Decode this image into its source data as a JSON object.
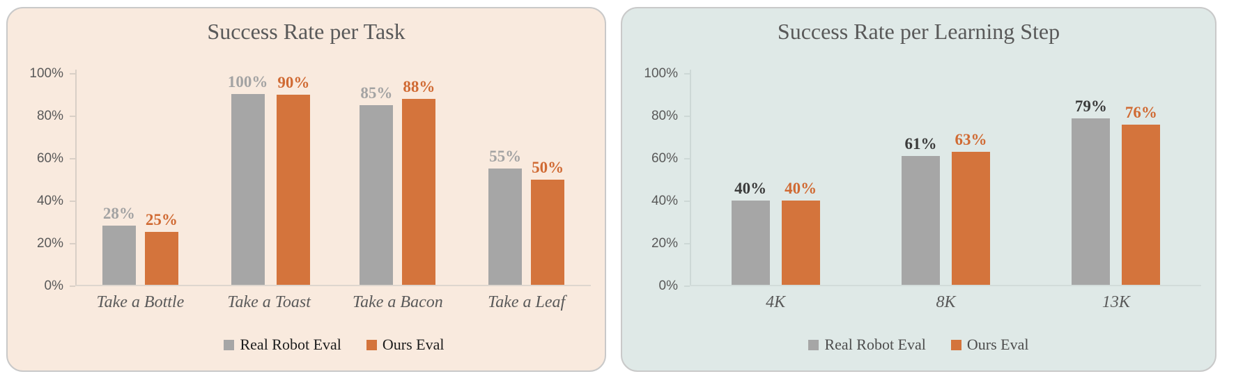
{
  "page": {
    "background": "#ffffff"
  },
  "chart_data": [
    {
      "type": "bar",
      "title": "Success Rate per Task",
      "categories": [
        "Take a Bottle",
        "Take a Toast",
        "Take a Bacon",
        "Take a Leaf"
      ],
      "series": [
        {
          "name": "Real Robot Eval",
          "values": [
            28,
            100,
            85,
            55
          ],
          "bar_color": "#a6a6a6",
          "label_color": "#a3a3a3"
        },
        {
          "name": "Ours Eval",
          "values": [
            25,
            90,
            88,
            50
          ],
          "bar_color": "#d4743c",
          "label_color": "#d06a33"
        }
      ],
      "value_suffix": "%",
      "ylim": [
        0,
        100
      ],
      "yticks": [
        "0%",
        "20%",
        "40%",
        "60%",
        "80%",
        "100%"
      ],
      "grid": false,
      "legend_position": "bottom",
      "card_background": "#f9eade",
      "title_color": "#595959",
      "legend_text_color": "#1c1c1c"
    },
    {
      "type": "bar",
      "title": "Success Rate per Learning Step",
      "categories": [
        "4K",
        "8K",
        "13K"
      ],
      "series": [
        {
          "name": "Real Robot Eval",
          "values": [
            40,
            61,
            79
          ],
          "bar_color": "#a6a6a6",
          "label_color": "#3b3b3b"
        },
        {
          "name": "Ours Eval",
          "values": [
            40,
            63,
            76
          ],
          "bar_color": "#d4743c",
          "label_color": "#d06a33"
        }
      ],
      "value_suffix": "%",
      "ylim": [
        0,
        100
      ],
      "yticks": [
        "0%",
        "20%",
        "40%",
        "60%",
        "80%",
        "100%"
      ],
      "grid": false,
      "legend_position": "bottom",
      "card_background": "#dfe9e7",
      "title_color": "#595959",
      "legend_text_color": "#4d4d4d"
    }
  ]
}
